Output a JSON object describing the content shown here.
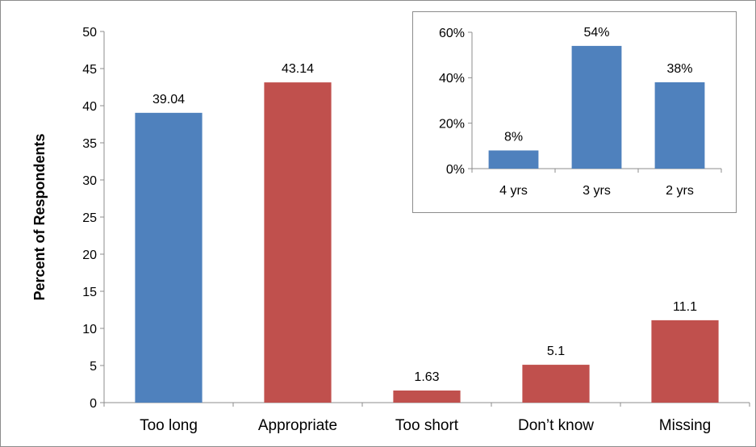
{
  "chart_data": [
    {
      "type": "bar",
      "categories": [
        "Too long",
        "Appropriate",
        "Too short",
        "Don’t know",
        "Missing"
      ],
      "values": [
        39.04,
        43.14,
        1.63,
        5.1,
        11.1
      ],
      "data_labels": [
        "39.04",
        "43.14",
        "1.63",
        "5.1",
        "11.1"
      ],
      "bar_colors": [
        "#4f81bd",
        "#c0504d",
        "#c0504d",
        "#c0504d",
        "#c0504d"
      ],
      "ylabel": "Percent of Respondents",
      "xlabel": "",
      "ylim": [
        0,
        50
      ],
      "yticks": [
        0,
        5,
        10,
        15,
        20,
        25,
        30,
        35,
        40,
        45,
        50
      ],
      "ytick_labels": [
        "0",
        "5",
        "10",
        "15",
        "20",
        "25",
        "30",
        "35",
        "40",
        "45",
        "50"
      ],
      "grid": false,
      "legend": "none"
    },
    {
      "type": "bar",
      "categories": [
        "4 yrs",
        "3 yrs",
        "2 yrs"
      ],
      "values": [
        8,
        54,
        38
      ],
      "data_labels": [
        "8%",
        "54%",
        "38%"
      ],
      "bar_colors": [
        "#4f81bd",
        "#4f81bd",
        "#4f81bd"
      ],
      "ylabel": "",
      "xlabel": "",
      "ylim": [
        0,
        60
      ],
      "yticks": [
        0,
        20,
        40,
        60
      ],
      "ytick_labels": [
        "0%",
        "20%",
        "40%",
        "60%"
      ],
      "grid": false,
      "legend": "none"
    }
  ]
}
